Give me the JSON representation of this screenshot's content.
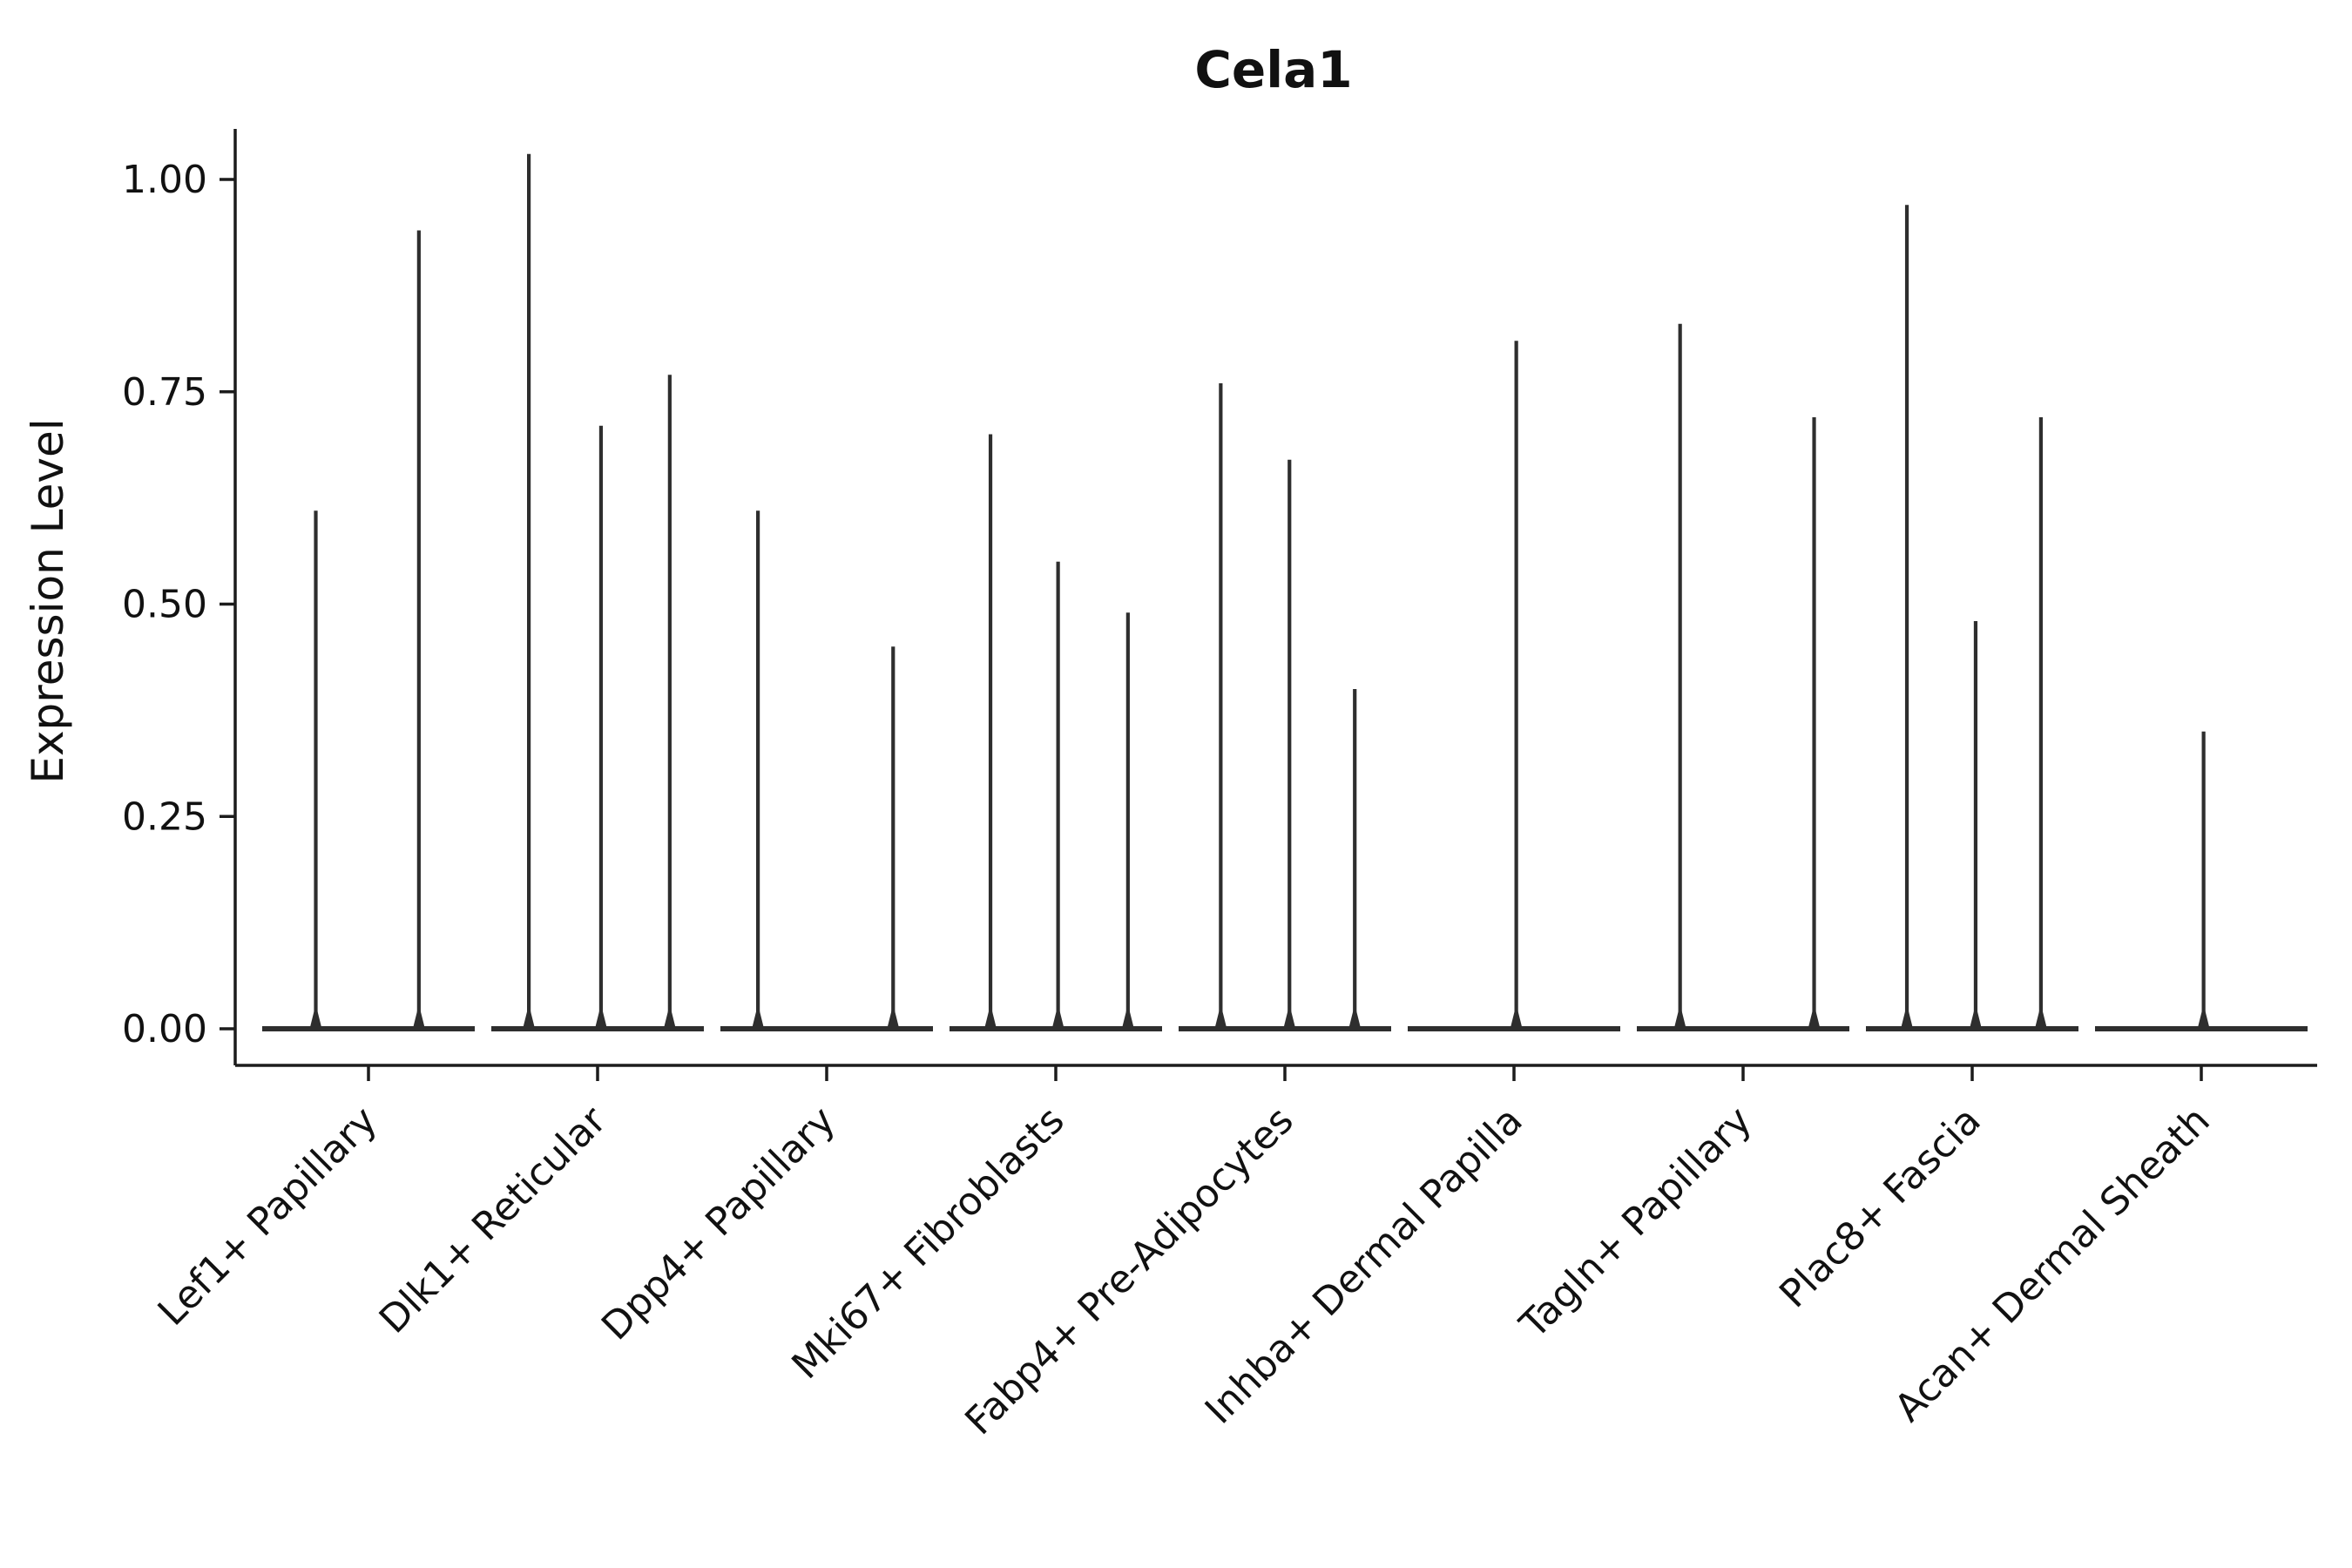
{
  "chart_data": {
    "type": "violin",
    "title": "Cela1",
    "ylabel": "Expression Level",
    "xlabel": "",
    "ylim": [
      0,
      1.06
    ],
    "ytick_values": [
      0.0,
      0.25,
      0.5,
      0.75,
      1.0
    ],
    "ytick_labels": [
      "0.00",
      "0.25",
      "0.50",
      "0.75",
      "1.00"
    ],
    "xtick_rotation": 45,
    "grid": false,
    "legend": false,
    "categories": [
      "Lef1+ Papillary",
      "Dlk1+ Reticular",
      "Dpp4+ Papillary",
      "Mki67+ Fibroblasts",
      "Fabp4+ Pre-Adipocytes",
      "Inhba+ Dermal Papilla",
      "Tagln+ Papillary",
      "Plac8+ Fascia",
      "Acan+ Dermal Sheath"
    ],
    "groups": [
      {
        "category": "Lef1+ Papillary",
        "spikes": [
          {
            "offset": -0.23,
            "value": 0.61
          },
          {
            "offset": 0.22,
            "value": 0.94
          }
        ]
      },
      {
        "category": "Dlk1+ Reticular",
        "spikes": [
          {
            "offset": -0.3,
            "value": 1.03
          },
          {
            "offset": 0.015,
            "value": 0.71
          },
          {
            "offset": 0.315,
            "value": 0.77
          }
        ]
      },
      {
        "category": "Dpp4+ Papillary",
        "spikes": [
          {
            "offset": -0.3,
            "value": 0.61
          },
          {
            "offset": 0.29,
            "value": 0.45
          }
        ]
      },
      {
        "category": "Mki67+ Fibroblasts",
        "spikes": [
          {
            "offset": -0.285,
            "value": 0.7
          },
          {
            "offset": 0.01,
            "value": 0.55
          },
          {
            "offset": 0.315,
            "value": 0.49
          }
        ]
      },
      {
        "category": "Fabp4+ Pre-Adipocytes",
        "spikes": [
          {
            "offset": -0.28,
            "value": 0.76
          },
          {
            "offset": 0.02,
            "value": 0.67
          },
          {
            "offset": 0.305,
            "value": 0.4
          }
        ]
      },
      {
        "category": "Inhba+ Dermal Papilla",
        "spikes": [
          {
            "offset": 0.01,
            "value": 0.81
          }
        ]
      },
      {
        "category": "Tagln+ Papillary",
        "spikes": [
          {
            "offset": -0.275,
            "value": 0.83
          },
          {
            "offset": 0.31,
            "value": 0.72
          }
        ]
      },
      {
        "category": "Plac8+ Fascia",
        "spikes": [
          {
            "offset": -0.285,
            "value": 0.97
          },
          {
            "offset": 0.015,
            "value": 0.48
          },
          {
            "offset": 0.3,
            "value": 0.72
          }
        ]
      },
      {
        "category": "Acan+ Dermal Sheath",
        "spikes": [
          {
            "offset": 0.01,
            "value": 0.35
          }
        ]
      }
    ],
    "colors": {
      "violin": "#2e2e2e",
      "axis": "#1c1c1c",
      "text": "#111111",
      "background": "#ffffff"
    }
  }
}
